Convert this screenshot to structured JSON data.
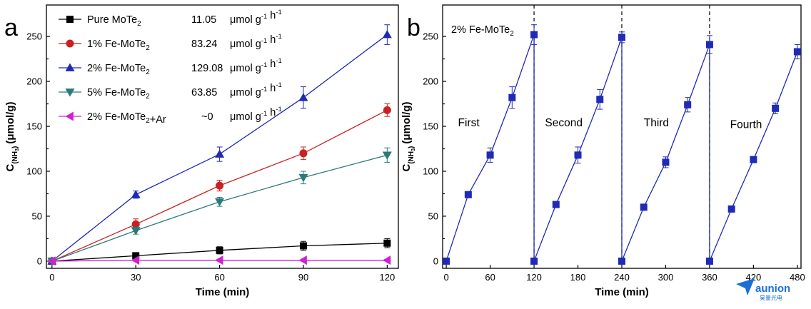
{
  "panel_a_letter": "a",
  "panel_b_letter": "b",
  "watermark": {
    "text": "aunion",
    "subtext": "昊量光电",
    "color": "#1a6fd8"
  },
  "chart_data": [
    {
      "type": "line",
      "panel": "a",
      "xlabel": "Time (min)",
      "ylabel": "C(NH3) (μmol/g)",
      "xlim": [
        -2,
        124
      ],
      "ylim": [
        -8,
        285
      ],
      "xticks": [
        0,
        30,
        60,
        90,
        120
      ],
      "yticks": [
        0,
        50,
        100,
        150,
        200,
        250
      ],
      "legend_position": "top-left",
      "x": [
        0,
        30,
        60,
        90,
        120
      ],
      "series": [
        {
          "name": "Pure MoTe2",
          "rate": "11.05",
          "unit": "μmol g-1 h-1",
          "color": "#000000",
          "marker": "square",
          "values": [
            0,
            6,
            12,
            17,
            20
          ],
          "errors": [
            2,
            3,
            4,
            5,
            5
          ]
        },
        {
          "name": "1% Fe-MoTe2",
          "rate": "83.24",
          "unit": "μmol g-1 h-1",
          "color": "#cc1f1f",
          "marker": "circle",
          "values": [
            0,
            41,
            84,
            120,
            168
          ],
          "errors": [
            2,
            6,
            6,
            7,
            7
          ]
        },
        {
          "name": "2% Fe-MoTe2",
          "rate": "129.08",
          "unit": "μmol g-1 h-1",
          "color": "#1f2ab5",
          "marker": "triangle-up",
          "values": [
            0,
            74,
            119,
            182,
            252
          ],
          "errors": [
            2,
            4,
            8,
            12,
            11
          ]
        },
        {
          "name": "5% Fe-MoTe2",
          "rate": "63.85",
          "unit": "μmol g-1 h-1",
          "color": "#2a7a7a",
          "marker": "triangle-down",
          "values": [
            0,
            34,
            66,
            93,
            118
          ],
          "errors": [
            2,
            4,
            5,
            7,
            8
          ]
        },
        {
          "name": "2% Fe-MoTe2+Ar",
          "rate": "~0",
          "unit": "μmol g-1 h-1",
          "color": "#d020d0",
          "marker": "triangle-left",
          "values": [
            0,
            1,
            1,
            1,
            1
          ],
          "errors": [
            0,
            0,
            0,
            0,
            0
          ]
        }
      ]
    },
    {
      "type": "line",
      "panel": "b",
      "annotation": "2% Fe-MoTe2",
      "xlabel": "Time (min)",
      "ylabel": "C(NH3) (μmol/g)",
      "xlim": [
        -5,
        485
      ],
      "ylim": [
        -8,
        285
      ],
      "xticks": [
        0,
        60,
        120,
        180,
        240,
        300,
        360,
        420,
        480
      ],
      "yticks": [
        0,
        50,
        100,
        150,
        200,
        250
      ],
      "cycle_boundaries": [
        120,
        240,
        360
      ],
      "cycles": [
        {
          "label": "First",
          "x": [
            0,
            30,
            60,
            90,
            120
          ],
          "values": [
            0,
            74,
            118,
            182,
            252
          ],
          "errors": [
            0,
            3,
            8,
            12,
            11
          ]
        },
        {
          "label": "Second",
          "x": [
            120,
            150,
            180,
            210,
            240
          ],
          "values": [
            0,
            63,
            118,
            180,
            249
          ],
          "errors": [
            0,
            2,
            9,
            11,
            6
          ]
        },
        {
          "label": "Third",
          "x": [
            240,
            270,
            300,
            330,
            360
          ],
          "values": [
            0,
            60,
            110,
            174,
            241
          ],
          "errors": [
            0,
            2,
            6,
            8,
            10
          ]
        },
        {
          "label": "Fourth",
          "x": [
            360,
            390,
            420,
            450,
            480
          ],
          "values": [
            0,
            58,
            113,
            170,
            233
          ],
          "errors": [
            0,
            2,
            3,
            6,
            8
          ]
        }
      ],
      "color": "#1f2ab5",
      "marker": "square"
    }
  ]
}
